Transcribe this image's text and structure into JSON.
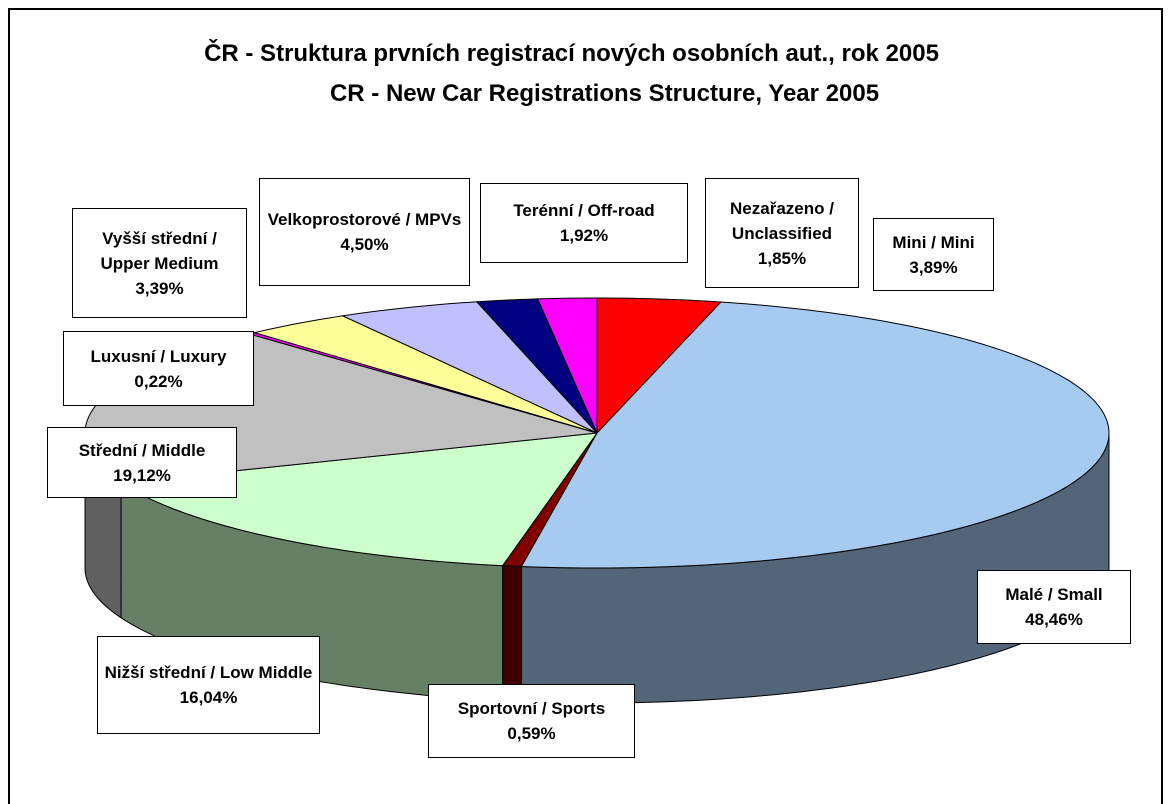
{
  "chart_data": {
    "type": "pie3d",
    "title": "ČR - Struktura prvních registrací nových osobních aut., rok 2005",
    "subtitle": "CR - New Car Registrations Structure, Year 2005",
    "categories": [
      "Mini / Mini",
      "Malé / Small",
      "Sportovní / Sports",
      "Nižší střední / Low Middle",
      "Střední / Middle",
      "Luxusní / Luxury",
      "Vyšší střední / Upper Medium",
      "Velkoprostorové / MPVs",
      "Terénní / Off-road",
      "Nezařazeno / Unclassified"
    ],
    "values": [
      3.89,
      48.46,
      0.59,
      16.04,
      19.12,
      0.22,
      3.39,
      4.5,
      1.92,
      1.85
    ],
    "value_labels": [
      "3,89%",
      "48,46%",
      "0,59%",
      "16,04%",
      "19,12%",
      "0,22%",
      "3,39%",
      "4,50%",
      "1,92%",
      "1,85%"
    ],
    "colors": [
      "#ff0000",
      "#a6caf0",
      "#800000",
      "#ccffcc",
      "#c0c0c0",
      "#ff00ff",
      "#ffff99",
      "#c0c0ff",
      "#000080",
      "#ff00ff"
    ]
  }
}
